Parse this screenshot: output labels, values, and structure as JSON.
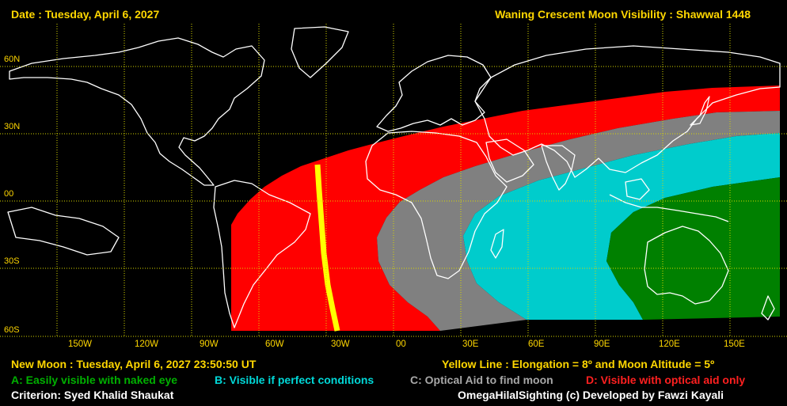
{
  "header": {
    "date_label": "Date : Tuesday, April 6, 2027",
    "title": "Waning Crescent Moon Visibility : Shawwal 1448"
  },
  "map": {
    "lat_labels": [
      "60N",
      "30N",
      "00",
      "30S",
      "60S"
    ],
    "lon_labels": [
      "150W",
      "120W",
      "90W",
      "60W",
      "30W",
      "00",
      "30E",
      "60E",
      "90E",
      "120E",
      "150E"
    ],
    "grid_color": "#d8d800",
    "zones": {
      "A": {
        "color": "#008000"
      },
      "B": {
        "color": "#00cccc"
      },
      "C": {
        "color": "#808080"
      },
      "D": {
        "color": "#ff0000"
      }
    },
    "yellow_line_color": "#ffff00"
  },
  "footer": {
    "new_moon": "New Moon : Tuesday, April 6, 2027  23:50:50  UT",
    "yellow_line": "Yellow Line : Elongation = 8º  and Moon Altitude = 5º",
    "legend": {
      "a": "A: Easily visible with naked eye",
      "b": "B: Visible if perfect conditions",
      "c": "C: Optical Aid to find moon",
      "d": "D: Visible with optical aid only"
    },
    "criterion": "Criterion: Syed Khalid Shaukat",
    "credit": "OmegaHilalSighting  (c)  Developed by Fawzi Kayali"
  },
  "colors": {
    "header_text": "#ffd700",
    "legend_a": "#00b000",
    "legend_b": "#00d8d8",
    "legend_c": "#a8a8a8",
    "legend_d": "#ff2020",
    "white_text": "#ffffff"
  }
}
